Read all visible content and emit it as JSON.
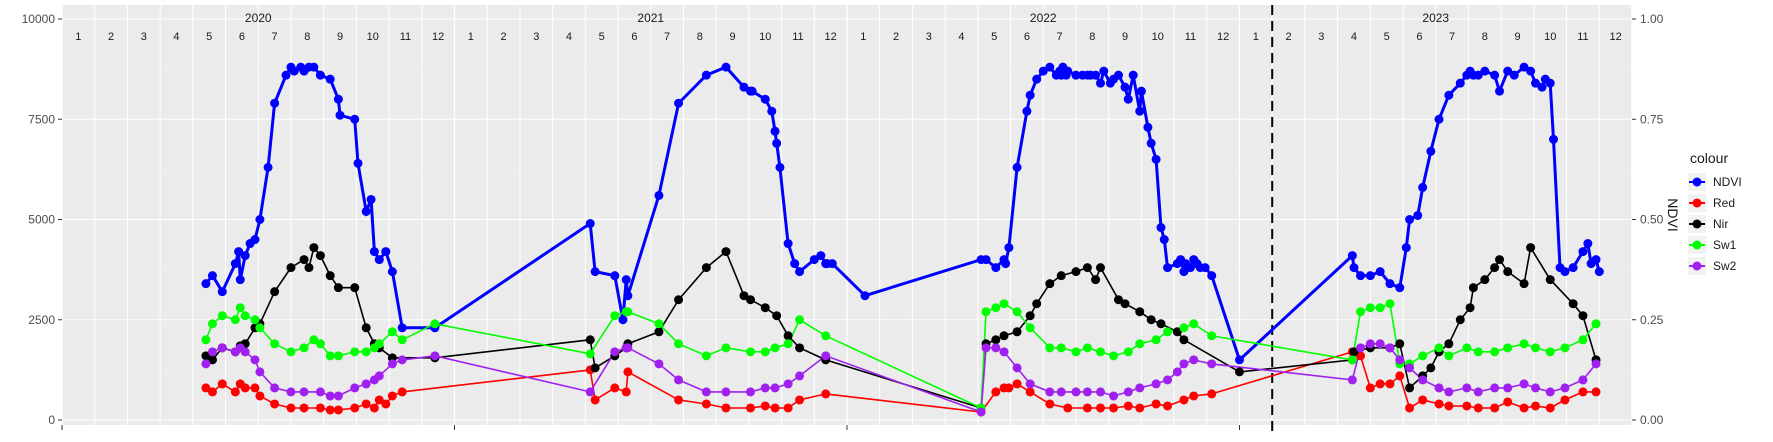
{
  "chart_data": {
    "type": "line",
    "x_axis": "month",
    "years": [
      "2020",
      "2021",
      "2022",
      "2023"
    ],
    "months": [
      "1",
      "2",
      "3",
      "4",
      "5",
      "6",
      "7",
      "8",
      "9",
      "10",
      "11",
      "12"
    ],
    "ylim_left": [
      0,
      10000
    ],
    "yticks_left": [
      "0",
      "2500",
      "5000",
      "7500",
      "10000"
    ],
    "ylim_right": [
      0,
      1
    ],
    "yticks_right": [
      "0.00",
      "0.25",
      "0.50",
      "0.75",
      "1.00"
    ],
    "ylabel_right": "NDVI",
    "vline_x": 37.0,
    "legend": {
      "title": "colour",
      "position": "right"
    },
    "grid": true,
    "series": [
      {
        "name": "NDVI",
        "color": "#0000ff",
        "x": [
          4.4,
          4.6,
          4.9,
          5.3,
          5.4,
          5.45,
          5.6,
          5.75,
          5.9,
          6.05,
          6.3,
          6.5,
          6.85,
          7.0,
          7.1,
          7.3,
          7.4,
          7.55,
          7.7,
          7.9,
          8.2,
          8.45,
          8.5,
          8.95,
          9.05,
          9.3,
          9.45,
          9.55,
          9.7,
          9.9,
          10.1,
          10.4,
          11.4,
          16.15,
          16.3,
          16.9,
          17.15,
          17.25,
          17.3,
          18.25,
          18.85,
          19.7,
          20.3,
          20.85,
          21.05,
          21.1,
          21.5,
          21.7,
          21.8,
          21.85,
          21.95,
          22.2,
          22.4,
          22.55,
          23.0,
          23.2,
          23.35,
          23.4,
          23.55,
          24.55,
          28.1,
          28.25,
          28.55,
          28.8,
          28.85,
          28.95,
          29.2,
          29.5,
          29.6,
          29.8,
          30.0,
          30.2,
          30.4,
          30.5,
          30.55,
          30.6,
          30.7,
          30.75,
          31.0,
          31.2,
          31.35,
          31.45,
          31.6,
          31.75,
          31.85,
          32.05,
          32.15,
          32.3,
          32.5,
          32.6,
          32.75,
          32.95,
          33.0,
          33.2,
          33.3,
          33.45,
          33.6,
          33.7,
          33.8,
          34.1,
          34.2,
          34.3,
          34.35,
          34.5,
          34.6,
          34.7,
          34.8,
          34.95,
          35.15,
          36.0,
          39.45,
          39.5,
          39.7,
          40.0,
          40.3,
          40.6,
          40.9,
          41.1,
          41.2,
          41.45,
          41.6,
          41.85,
          42.1,
          42.4,
          42.75,
          42.95,
          43.05,
          43.15,
          43.3,
          43.5,
          43.8,
          43.95,
          44.2,
          44.4,
          44.7,
          44.9,
          45.05,
          45.25,
          45.35,
          45.5,
          45.6,
          45.8,
          45.95,
          46.2,
          46.5,
          46.65,
          46.75,
          46.9,
          47.0
        ],
        "y": [
          0.34,
          0.36,
          0.32,
          0.39,
          0.42,
          0.35,
          0.41,
          0.44,
          0.45,
          0.5,
          0.63,
          0.79,
          0.86,
          0.88,
          0.87,
          0.88,
          0.87,
          0.88,
          0.88,
          0.86,
          0.85,
          0.8,
          0.76,
          0.75,
          0.64,
          0.52,
          0.55,
          0.42,
          0.4,
          0.42,
          0.37,
          0.23,
          0.23,
          0.49,
          0.37,
          0.36,
          0.25,
          0.35,
          0.31,
          0.56,
          0.79,
          0.86,
          0.88,
          0.83,
          0.82,
          0.82,
          0.8,
          0.77,
          0.72,
          0.69,
          0.63,
          0.44,
          0.39,
          0.37,
          0.4,
          0.41,
          0.39,
          0.39,
          0.39,
          0.31,
          0.4,
          0.4,
          0.38,
          0.4,
          0.39,
          0.43,
          0.63,
          0.77,
          0.81,
          0.85,
          0.87,
          0.88,
          0.86,
          0.87,
          0.86,
          0.88,
          0.86,
          0.87,
          0.86,
          0.86,
          0.86,
          0.86,
          0.86,
          0.84,
          0.87,
          0.84,
          0.85,
          0.86,
          0.83,
          0.8,
          0.86,
          0.77,
          0.82,
          0.73,
          0.69,
          0.65,
          0.48,
          0.45,
          0.38,
          0.39,
          0.4,
          0.37,
          0.39,
          0.38,
          0.4,
          0.39,
          0.38,
          0.38,
          0.36,
          0.15,
          0.41,
          0.38,
          0.36,
          0.36,
          0.37,
          0.34,
          0.33,
          0.43,
          0.5,
          0.51,
          0.58,
          0.67,
          0.75,
          0.81,
          0.84,
          0.86,
          0.87,
          0.86,
          0.86,
          0.87,
          0.86,
          0.82,
          0.87,
          0.86,
          0.88,
          0.87,
          0.84,
          0.83,
          0.85,
          0.84,
          0.7,
          0.38,
          0.37,
          0.38,
          0.42,
          0.44,
          0.39,
          0.4,
          0.37
        ]
      },
      {
        "name": "Red",
        "color": "#ff0000",
        "x": [
          4.4,
          4.6,
          4.9,
          5.3,
          5.45,
          5.6,
          5.9,
          6.05,
          6.5,
          7.0,
          7.4,
          7.9,
          8.2,
          8.45,
          8.95,
          9.3,
          9.55,
          9.7,
          9.9,
          10.1,
          10.4,
          16.15,
          16.3,
          16.9,
          17.25,
          17.3,
          18.85,
          19.7,
          20.3,
          21.05,
          21.5,
          21.8,
          22.2,
          22.55,
          23.35,
          28.1,
          28.55,
          28.8,
          28.95,
          29.2,
          29.6,
          30.2,
          30.75,
          31.35,
          31.75,
          32.15,
          32.6,
          32.95,
          33.45,
          33.8,
          34.3,
          34.6,
          35.15,
          39.45,
          39.7,
          40.0,
          40.3,
          40.6,
          40.9,
          41.2,
          41.6,
          42.1,
          42.4,
          42.95,
          43.3,
          43.8,
          44.2,
          44.7,
          45.05,
          45.5,
          45.95,
          46.5,
          46.9
        ],
        "y": [
          800,
          700,
          900,
          700,
          900,
          800,
          800,
          600,
          400,
          300,
          300,
          300,
          250,
          250,
          300,
          400,
          300,
          500,
          400,
          600,
          700,
          1250,
          500,
          800,
          700,
          1200,
          500,
          400,
          300,
          300,
          350,
          300,
          300,
          500,
          650,
          200,
          700,
          800,
          800,
          900,
          700,
          400,
          300,
          300,
          300,
          300,
          350,
          300,
          400,
          350,
          500,
          600,
          650,
          1700,
          1600,
          800,
          900,
          900,
          1100,
          300,
          500,
          400,
          350,
          350,
          300,
          300,
          450,
          300,
          350,
          300,
          500,
          700,
          700
        ]
      },
      {
        "name": "Nir",
        "color": "#000000",
        "x": [
          4.4,
          4.6,
          4.9,
          5.3,
          5.45,
          5.6,
          5.9,
          6.05,
          6.5,
          7.0,
          7.4,
          7.55,
          7.7,
          7.9,
          8.2,
          8.45,
          8.95,
          9.3,
          9.55,
          9.7,
          10.1,
          11.4,
          16.15,
          16.3,
          16.9,
          17.25,
          17.3,
          18.25,
          18.85,
          19.7,
          20.3,
          20.85,
          21.05,
          21.5,
          21.85,
          22.2,
          22.55,
          23.35,
          28.1,
          28.25,
          28.55,
          28.8,
          29.2,
          29.6,
          29.8,
          30.2,
          30.55,
          31.0,
          31.35,
          31.6,
          31.75,
          32.3,
          32.5,
          32.95,
          33.3,
          33.6,
          34.1,
          34.3,
          36.0,
          39.45,
          39.5,
          40.0,
          40.6,
          40.9,
          41.2,
          41.6,
          41.85,
          42.1,
          42.4,
          42.75,
          43.05,
          43.15,
          43.5,
          43.8,
          43.95,
          44.2,
          44.7,
          44.9,
          45.5,
          46.2,
          46.5,
          46.9
        ],
        "y": [
          1600,
          1500,
          1800,
          1700,
          1850,
          1900,
          2300,
          2400,
          3200,
          3800,
          4000,
          3800,
          4300,
          4100,
          3600,
          3300,
          3300,
          2300,
          1900,
          1800,
          1550,
          1550,
          2000,
          1300,
          1600,
          1800,
          1900,
          2200,
          3000,
          3800,
          4200,
          3100,
          3000,
          2800,
          2600,
          2100,
          1800,
          1500,
          300,
          1900,
          2000,
          2100,
          2200,
          2600,
          2900,
          3400,
          3600,
          3700,
          3800,
          3500,
          3800,
          3000,
          2900,
          2700,
          2500,
          2400,
          2200,
          2000,
          1200,
          1500,
          1700,
          1800,
          1800,
          1900,
          800,
          1100,
          1300,
          1700,
          1900,
          2500,
          2800,
          3300,
          3500,
          3800,
          4000,
          3700,
          3400,
          4300,
          3500,
          2900,
          2600,
          1500
        ]
      },
      {
        "name": "Sw1",
        "color": "#00ff00",
        "x": [
          4.4,
          4.6,
          4.9,
          5.3,
          5.45,
          5.6,
          5.9,
          6.05,
          6.5,
          7.0,
          7.4,
          7.7,
          7.9,
          8.2,
          8.45,
          8.95,
          9.3,
          9.55,
          9.7,
          10.1,
          10.4,
          11.4,
          16.15,
          16.9,
          17.25,
          17.3,
          18.25,
          18.85,
          19.7,
          20.3,
          21.05,
          21.5,
          21.8,
          22.2,
          22.55,
          23.35,
          28.1,
          28.25,
          28.55,
          28.8,
          29.2,
          29.6,
          30.2,
          30.55,
          31.0,
          31.35,
          31.75,
          32.15,
          32.6,
          32.95,
          33.45,
          33.8,
          34.3,
          34.6,
          35.15,
          39.45,
          39.7,
          40.0,
          40.3,
          40.6,
          40.9,
          41.2,
          41.6,
          42.1,
          42.4,
          42.95,
          43.3,
          43.8,
          44.2,
          44.7,
          45.05,
          45.5,
          45.95,
          46.5,
          46.9
        ],
        "y": [
          2000,
          2400,
          2600,
          2500,
          2800,
          2600,
          2500,
          2300,
          1900,
          1700,
          1800,
          2000,
          1900,
          1600,
          1600,
          1700,
          1700,
          1800,
          1900,
          2200,
          2000,
          2400,
          1650,
          2600,
          2700,
          2700,
          2400,
          1900,
          1600,
          1800,
          1700,
          1700,
          1800,
          1900,
          2500,
          2100,
          300,
          2700,
          2800,
          2900,
          2700,
          2300,
          1800,
          1800,
          1700,
          1800,
          1700,
          1600,
          1700,
          1900,
          2000,
          2200,
          2300,
          2400,
          2100,
          1500,
          2700,
          2800,
          2800,
          2900,
          1400,
          1400,
          1600,
          1800,
          1600,
          1800,
          1700,
          1700,
          1800,
          1900,
          1800,
          1700,
          1800,
          2000,
          2400
        ]
      },
      {
        "name": "Sw2",
        "color": "#a020f0",
        "x": [
          4.4,
          4.6,
          4.9,
          5.3,
          5.45,
          5.6,
          5.9,
          6.05,
          6.5,
          7.0,
          7.4,
          7.9,
          8.2,
          8.45,
          8.95,
          9.3,
          9.55,
          9.7,
          10.1,
          10.4,
          11.4,
          16.15,
          16.9,
          17.25,
          17.3,
          18.25,
          18.85,
          19.7,
          20.3,
          21.05,
          21.5,
          21.8,
          22.2,
          22.55,
          23.35,
          28.1,
          28.25,
          28.55,
          28.8,
          29.2,
          29.6,
          30.2,
          30.55,
          31.0,
          31.35,
          31.75,
          32.15,
          32.6,
          32.95,
          33.45,
          33.8,
          34.1,
          34.3,
          34.6,
          35.15,
          39.45,
          39.7,
          40.0,
          40.3,
          40.6,
          40.9,
          41.2,
          41.6,
          42.1,
          42.4,
          42.95,
          43.3,
          43.8,
          44.2,
          44.7,
          45.05,
          45.5,
          45.95,
          46.5,
          46.9
        ],
        "y": [
          1400,
          1700,
          1800,
          1700,
          1800,
          1700,
          1500,
          1200,
          800,
          700,
          700,
          700,
          600,
          600,
          800,
          900,
          1000,
          1100,
          1400,
          1500,
          1600,
          700,
          1700,
          1800,
          1800,
          1400,
          1000,
          700,
          700,
          700,
          800,
          800,
          900,
          1100,
          1600,
          200,
          1800,
          1800,
          1700,
          1300,
          900,
          700,
          700,
          700,
          700,
          700,
          600,
          700,
          800,
          900,
          1000,
          1200,
          1400,
          1500,
          1400,
          1000,
          1800,
          1900,
          1900,
          1800,
          1500,
          1300,
          1000,
          800,
          700,
          800,
          700,
          800,
          800,
          900,
          800,
          700,
          800,
          1000,
          1400
        ]
      }
    ]
  }
}
